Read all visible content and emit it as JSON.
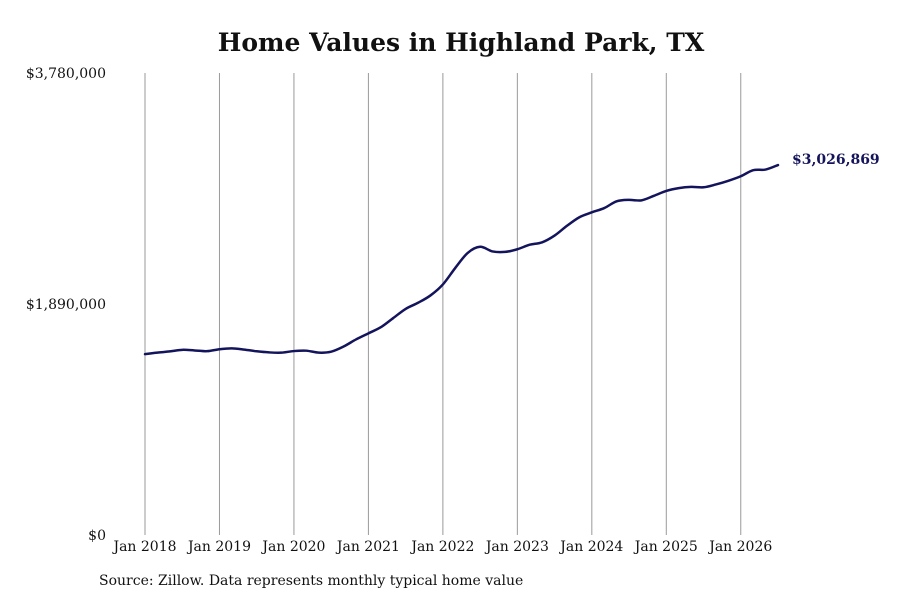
{
  "chart_data": {
    "type": "line",
    "title": "Home Values in Highland Park, TX",
    "ylim": [
      0,
      3780000
    ],
    "xlim": [
      "2018-01",
      "2026-07"
    ],
    "y_ticks": [
      {
        "value": 0,
        "label": "$0"
      },
      {
        "value": 1890000,
        "label": "$1,890,000"
      },
      {
        "value": 3780000,
        "label": "$3,780,000"
      }
    ],
    "x_ticks": [
      {
        "value": "2018-01",
        "label": "Jan 2018"
      },
      {
        "value": "2019-01",
        "label": "Jan 2019"
      },
      {
        "value": "2020-01",
        "label": "Jan 2020"
      },
      {
        "value": "2021-01",
        "label": "Jan 2021"
      },
      {
        "value": "2022-01",
        "label": "Jan 2022"
      },
      {
        "value": "2023-01",
        "label": "Jan 2023"
      },
      {
        "value": "2024-01",
        "label": "Jan 2024"
      },
      {
        "value": "2025-01",
        "label": "Jan 2025"
      },
      {
        "value": "2026-01",
        "label": "Jan 2026"
      }
    ],
    "grid": {
      "vertical": true,
      "horizontal": false
    },
    "line_color": "#14145c",
    "gridline_color": "#9a9a9a",
    "end_label": "$3,026,869",
    "series": [
      {
        "x": [
          "2018-01",
          "2018-03",
          "2018-05",
          "2018-07",
          "2018-09",
          "2018-11",
          "2019-01",
          "2019-03",
          "2019-05",
          "2019-07",
          "2019-09",
          "2019-11",
          "2020-01",
          "2020-03",
          "2020-05",
          "2020-07",
          "2020-09",
          "2020-11",
          "2021-01",
          "2021-03",
          "2021-05",
          "2021-07",
          "2021-09",
          "2021-11",
          "2022-01",
          "2022-03",
          "2022-05",
          "2022-07",
          "2022-09",
          "2022-11",
          "2023-01",
          "2023-03",
          "2023-05",
          "2023-07",
          "2023-09",
          "2023-11",
          "2024-01",
          "2024-03",
          "2024-05",
          "2024-07",
          "2024-09",
          "2024-11",
          "2025-01",
          "2025-03",
          "2025-05",
          "2025-07",
          "2025-09",
          "2025-11",
          "2026-01",
          "2026-03",
          "2026-05",
          "2026-07"
        ],
        "values": [
          1480000,
          1492000,
          1502000,
          1515000,
          1510000,
          1504000,
          1520000,
          1527000,
          1517000,
          1503000,
          1494000,
          1492000,
          1505000,
          1508000,
          1492000,
          1500000,
          1542000,
          1600000,
          1650000,
          1700000,
          1775000,
          1850000,
          1900000,
          1960000,
          2050000,
          2185000,
          2308000,
          2358000,
          2320000,
          2316000,
          2338000,
          2375000,
          2395000,
          2450000,
          2530000,
          2600000,
          2640000,
          2675000,
          2730000,
          2742000,
          2738000,
          2775000,
          2815000,
          2838000,
          2848000,
          2845000,
          2868000,
          2898000,
          2935000,
          2985000,
          2990000,
          3026869
        ]
      }
    ]
  },
  "footer": {
    "source": "Source: Zillow. Data represents monthly typical home value"
  }
}
